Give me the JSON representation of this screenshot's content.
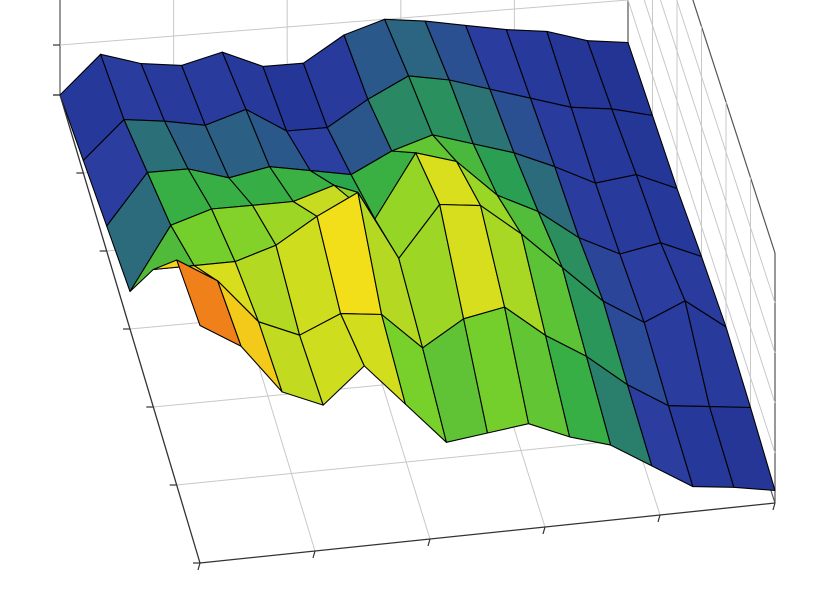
{
  "chart_data": {
    "type": "surface",
    "title": "",
    "xlabel": "",
    "ylabel": "",
    "zlabel": "",
    "tick_labels_visible": false,
    "grid": true,
    "legend": "none",
    "x_points": 15,
    "y_points": 7,
    "zlim": [
      0,
      1
    ],
    "colormap": [
      "#1f2f8f",
      "#2b3ea0",
      "#2aa84a",
      "#7ad12a",
      "#f2e21a",
      "#f5a21a",
      "#e21a1a"
    ],
    "wireframe_color": "#000000",
    "z": [
      [
        0.95,
        0.9,
        0.55,
        0.15,
        0.1,
        0.05,
        0.0
      ],
      [
        0.85,
        0.8,
        0.55,
        0.4,
        0.3,
        0.2,
        0.15
      ],
      [
        0.65,
        0.62,
        0.55,
        0.45,
        0.3,
        0.18,
        0.1
      ],
      [
        0.58,
        0.55,
        0.6,
        0.45,
        0.25,
        0.15,
        0.08
      ],
      [
        0.72,
        0.62,
        0.7,
        0.45,
        0.28,
        0.2,
        0.12
      ],
      [
        0.55,
        0.6,
        0.78,
        0.5,
        0.25,
        0.1,
        0.05
      ],
      [
        0.38,
        0.45,
        0.5,
        0.35,
        0.22,
        0.1,
        0.05
      ],
      [
        0.4,
        0.55,
        0.7,
        0.6,
        0.3,
        0.2,
        0.15
      ],
      [
        0.42,
        0.58,
        0.68,
        0.55,
        0.35,
        0.28,
        0.2
      ],
      [
        0.35,
        0.45,
        0.55,
        0.4,
        0.3,
        0.25,
        0.18
      ],
      [
        0.3,
        0.35,
        0.4,
        0.32,
        0.25,
        0.2,
        0.15
      ],
      [
        0.2,
        0.22,
        0.25,
        0.2,
        0.18,
        0.15,
        0.12
      ],
      [
        0.1,
        0.12,
        0.15,
        0.12,
        0.1,
        0.1,
        0.1
      ],
      [
        0.08,
        0.1,
        0.22,
        0.15,
        0.12,
        0.08,
        0.05
      ],
      [
        0.05,
        0.08,
        0.1,
        0.08,
        0.05,
        0.04,
        0.03
      ]
    ]
  }
}
